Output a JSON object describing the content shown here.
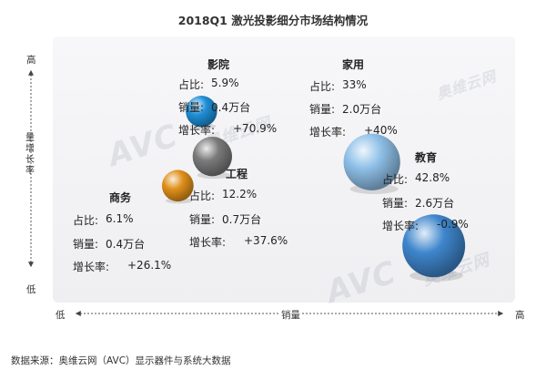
{
  "title": "2018Q1 激光投影细分市场结构情况",
  "axes": {
    "y_high": "高",
    "y_low": "低",
    "y_label": "量增长率",
    "x_low": "低",
    "x_high": "高",
    "x_label": "销量"
  },
  "watermark": {
    "logo": "AVC",
    "cn": "奥维云网"
  },
  "source": "数据来源：奥维云网（AVC）显示器件与系统大数据",
  "segment_labels": {
    "share": "占比:",
    "volume": "销量:",
    "growth": "增长率:"
  },
  "chart_data": {
    "type": "scatter",
    "title": "2018Q1 激光投影细分市场结构情况",
    "xlabel": "销量",
    "ylabel": "量增长率",
    "points": [
      {
        "name": "影院",
        "share": "5.9%",
        "volume": "0.4万台",
        "growth": "+70.9%",
        "color": "#1e8fd8",
        "x": 0.4,
        "y": 70.9
      },
      {
        "name": "家用",
        "share": "33%",
        "volume": "2.0万台",
        "growth": "+40%",
        "color": "#8fc0e8",
        "x": 2.0,
        "y": 40
      },
      {
        "name": "工程",
        "share": "12.2%",
        "volume": "0.7万台",
        "growth": "+37.6%",
        "color": "#7a7a7a",
        "x": 0.7,
        "y": 37.6
      },
      {
        "name": "商务",
        "share": "6.1%",
        "volume": "0.4万台",
        "growth": "+26.1%",
        "color": "#e0901a",
        "x": 0.4,
        "y": 26.1
      },
      {
        "name": "教育",
        "share": "42.8%",
        "volume": "2.6万台",
        "growth": "-0.9%",
        "color": "#3f86cc",
        "x": 2.6,
        "y": -0.9
      }
    ]
  }
}
